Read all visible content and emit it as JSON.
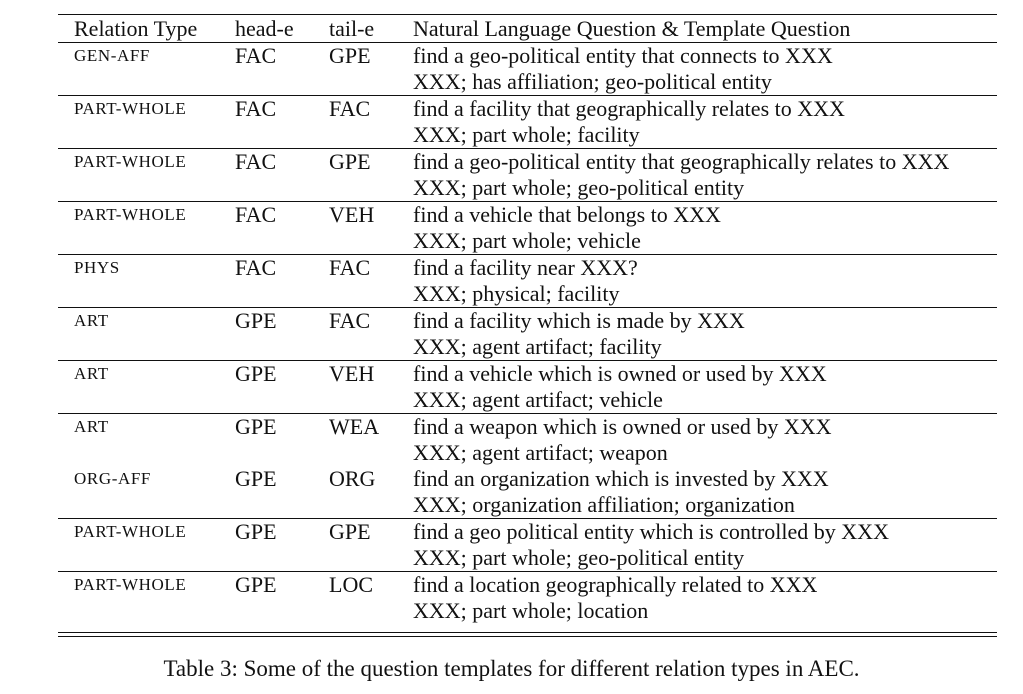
{
  "table": {
    "headers": {
      "relation_type": "Relation Type",
      "head_e": "head-e",
      "tail_e": "tail-e",
      "question": "Natural Language Question & Template Question"
    },
    "rows": [
      {
        "rel": "GEN-AFF",
        "head": "FAC",
        "tail": "GPE",
        "nl": "find a geo-political entity that connects to XXX",
        "tpl": "XXX; has affiliation; geo-political entity"
      },
      {
        "rel": "PART-WHOLE",
        "head": "FAC",
        "tail": "FAC",
        "nl": "find a facility that geographically relates to XXX",
        "tpl": "XXX; part whole; facility"
      },
      {
        "rel": "PART-WHOLE",
        "head": "FAC",
        "tail": "GPE",
        "nl": "find a geo-political entity that geographically relates to XXX",
        "tpl": "XXX; part whole; geo-political entity"
      },
      {
        "rel": "PART-WHOLE",
        "head": "FAC",
        "tail": "VEH",
        "nl": "find a vehicle that belongs to XXX",
        "tpl": "XXX; part whole; vehicle"
      },
      {
        "rel": "PHYS",
        "head": "FAC",
        "tail": "FAC",
        "nl": "find a facility near XXX?",
        "tpl": "XXX; physical; facility"
      },
      {
        "rel": "ART",
        "head": "GPE",
        "tail": "FAC",
        "nl": "find a facility which is made by XXX",
        "tpl": "XXX; agent artifact; facility"
      },
      {
        "rel": "ART",
        "head": "GPE",
        "tail": "VEH",
        "nl": "find a vehicle which is owned or used by XXX",
        "tpl": "XXX; agent artifact; vehicle"
      },
      {
        "rel": "ART",
        "head": "GPE",
        "tail": "WEA",
        "nl": "find a weapon which is owned or used by XXX",
        "tpl": "XXX; agent artifact; weapon"
      },
      {
        "rel": "ORG-AFF",
        "head": "GPE",
        "tail": "ORG",
        "nl": "find an organization which is invested by XXX",
        "tpl": "XXX; organization affiliation; organization"
      },
      {
        "rel": "PART-WHOLE",
        "head": "GPE",
        "tail": "GPE",
        "nl": "find a geo political entity which is controlled by XXX",
        "tpl": "XXX; part whole; geo-political entity"
      },
      {
        "rel": "PART-WHOLE",
        "head": "GPE",
        "tail": "LOC",
        "nl": "find a location geographically related to XXX",
        "tpl": "XXX; part whole; location"
      }
    ]
  },
  "caption": "Table 3: Some of the question templates for different relation types in AEC."
}
